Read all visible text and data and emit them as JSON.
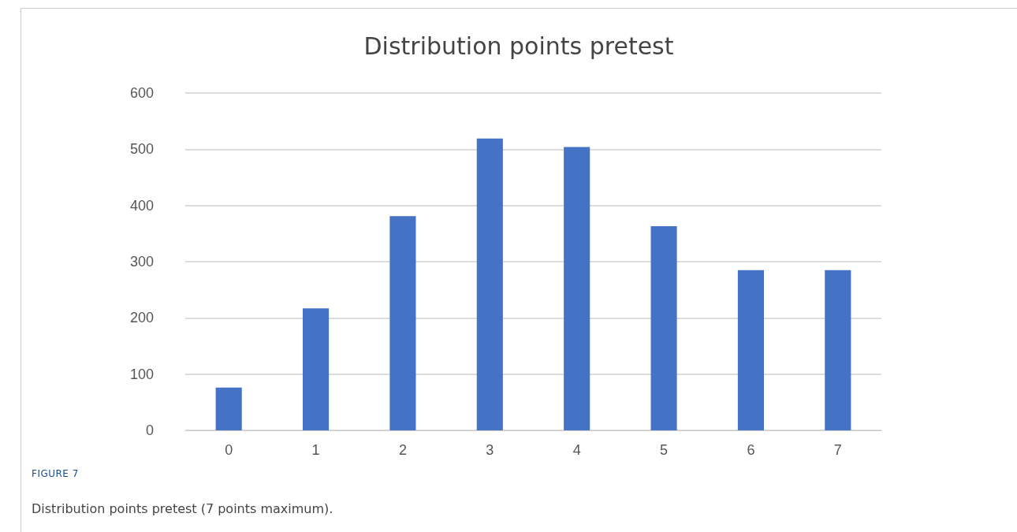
{
  "chart_data": {
    "type": "bar",
    "title": "Distribution points pretest",
    "categories": [
      "0",
      "1",
      "2",
      "3",
      "4",
      "5",
      "6",
      "7"
    ],
    "values": [
      76,
      217,
      381,
      519,
      504,
      363,
      285,
      285
    ],
    "color": "#4472c4",
    "ylim": [
      0,
      600
    ],
    "yticks": [
      0,
      100,
      200,
      300,
      400,
      500,
      600
    ],
    "grid": "y",
    "annotations": [
      "FIGURE 7",
      "Distribution points pretest (7 points maximum)."
    ]
  }
}
